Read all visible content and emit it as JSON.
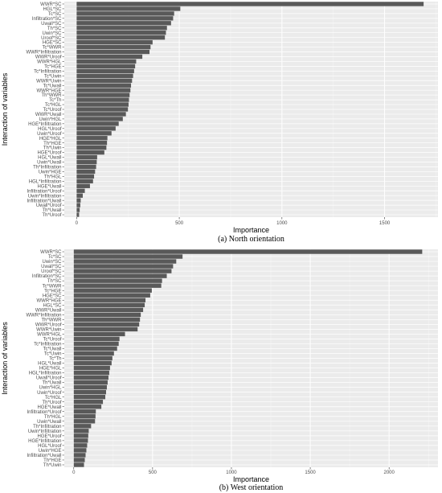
{
  "chart_data": [
    {
      "type": "bar",
      "orientation": "horizontal",
      "caption": "(a) North orientation",
      "xlabel": "Importance",
      "ylabel": "Interaction of variables",
      "xlim": [
        -60,
        1760
      ],
      "xticks": [
        0,
        500,
        1000,
        1500
      ],
      "grid": true,
      "bar_color": "#595959",
      "panel_color": "#ebebeb",
      "categories": [
        "WWR*SC",
        "HGL*SC",
        "Tc*SC",
        "Infiltration*SC",
        "Uwall*SC",
        "Th*SC",
        "Uwin*SC",
        "Uroof*SC",
        "HGE*SC",
        "Tc*WWR",
        "WWR*Infiltration",
        "WWR*Uroof",
        "WWR*HGL",
        "Tc*HGE",
        "Tc*Infiltration",
        "Tc*Uwin",
        "WWR*Uwin",
        "Tc*Uwall",
        "WWR*HGE",
        "Th*WWR",
        "Tc*Th",
        "Tc*HGL",
        "Tc*Uroof",
        "WWR*Uwall",
        "Uwin*HGL",
        "HGE*Infiltration",
        "HGL*Uroof",
        "Uwin*Uroof",
        "HGE*HGL",
        "Th*HGE",
        "Th*Uwin",
        "HGE*Uroof",
        "HGL*Uwall",
        "Uwin*Uwall",
        "Th*Infiltration",
        "Uwin*HGE",
        "Th*HGL",
        "HGL*Infiltration",
        "HGE*Uwall",
        "Infiltration*Uroof",
        "Uwin*Infiltration",
        "Infiltration*Uwall",
        "Uwall*Uroof",
        "Th*Uwall",
        "Th*Uroof"
      ],
      "values": [
        1690,
        505,
        475,
        470,
        460,
        440,
        435,
        430,
        370,
        360,
        355,
        320,
        290,
        285,
        280,
        275,
        270,
        265,
        262,
        258,
        255,
        253,
        250,
        240,
        225,
        205,
        190,
        170,
        150,
        148,
        145,
        135,
        100,
        98,
        95,
        90,
        85,
        80,
        65,
        40,
        30,
        20,
        18,
        15,
        12
      ]
    },
    {
      "type": "bar",
      "orientation": "horizontal",
      "caption": "(b) West orientation",
      "xlabel": "Importance",
      "ylabel": "Interaction of variables",
      "xlim": [
        -60,
        2310
      ],
      "xticks": [
        0,
        500,
        1000,
        1500,
        2000
      ],
      "grid": true,
      "bar_color": "#595959",
      "panel_color": "#ebebeb",
      "categories": [
        "WWR*SC",
        "Tc*SC",
        "Uwin*SC",
        "Uwall*SC",
        "Uroof*SC",
        "Infiltration*SC",
        "Th*SC",
        "Tc*WWR",
        "Tc*HGE",
        "HGE*SC",
        "WWR*HGE",
        "HGL*SC",
        "WWR*Uwall",
        "WWR*Infiltration",
        "Th*WWR",
        "WWR*Uroof",
        "WWR*Uwin",
        "WWR*HGL",
        "Tc*Uroof",
        "Tc*Infiltration",
        "Tc*Uwall",
        "Tc*Uwin",
        "Tc*Th",
        "HGL*Uwall",
        "HGE*HGL",
        "HGL*Infiltration",
        "Uwall*Uroof",
        "Th*Uwall",
        "Uwin*HGL",
        "Uwin*Uroof",
        "Tc*HGL",
        "Th*Uroof",
        "HGE*Uwall",
        "Infiltration*Uroof",
        "Th*HGL",
        "Uwin*Uwall",
        "Th*Infiltration",
        "Uwin*Infiltration",
        "HGE*Uroof",
        "HGE*Infiltration",
        "HGL*Uroof",
        "Uwin*HGE",
        "Infiltration*Uwall",
        "Th*HGE",
        "Th*Uwin"
      ],
      "values": [
        2210,
        690,
        650,
        630,
        620,
        590,
        560,
        555,
        495,
        485,
        455,
        450,
        440,
        425,
        420,
        415,
        405,
        325,
        290,
        285,
        275,
        255,
        245,
        240,
        230,
        225,
        220,
        215,
        210,
        205,
        200,
        185,
        175,
        140,
        138,
        135,
        110,
        95,
        92,
        90,
        85,
        80,
        75,
        70,
        65
      ]
    }
  ]
}
